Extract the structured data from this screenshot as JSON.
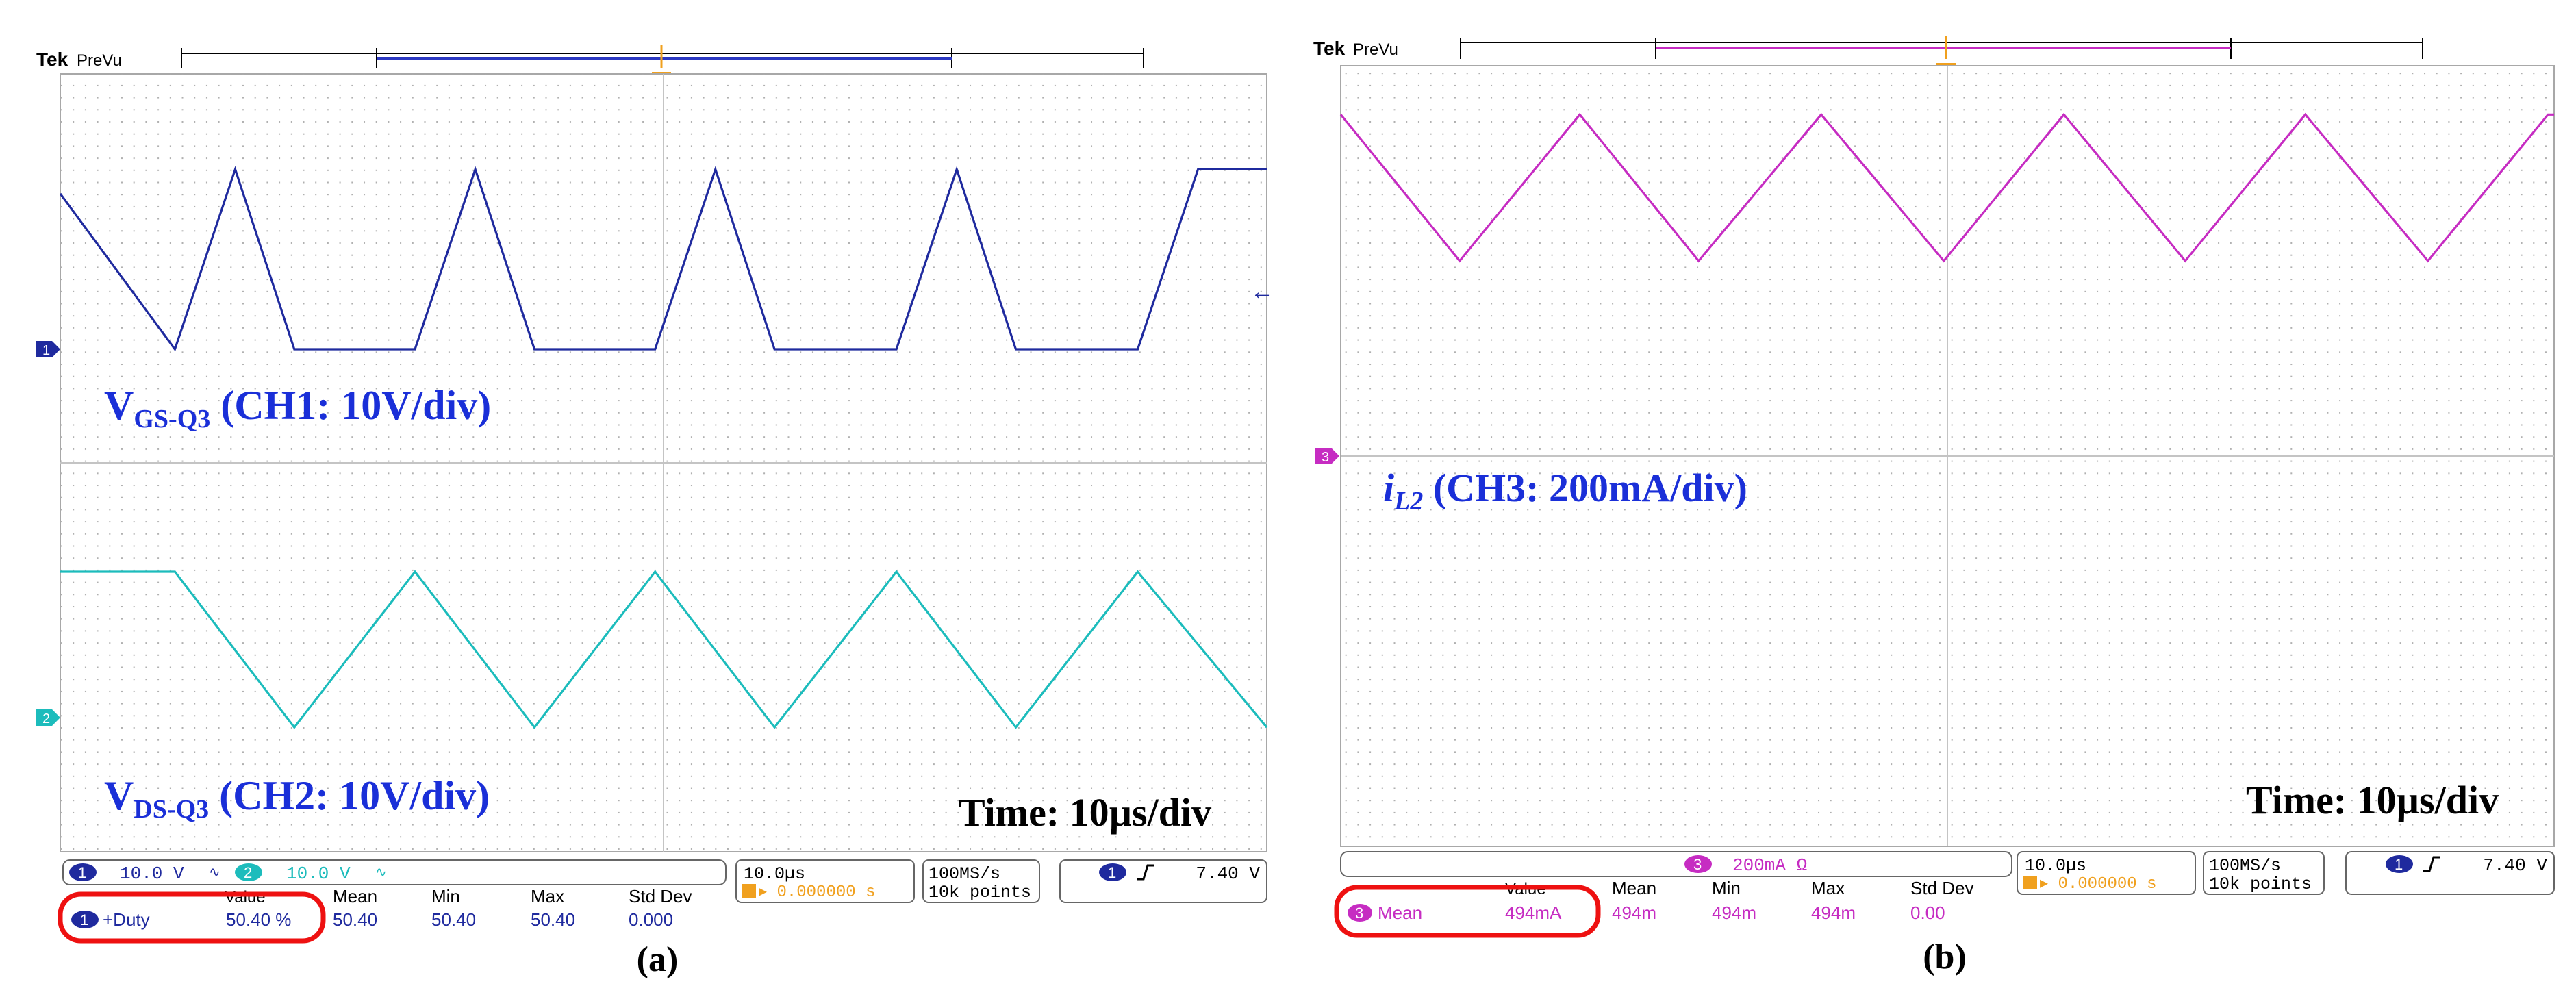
{
  "figures": [
    {
      "brand": "Tek",
      "mode": "PreVu",
      "annotations": [
        {
          "main": "V",
          "sub": "GS-Q3",
          "rest": " (CH1: 10V/div)"
        },
        {
          "main": "V",
          "sub": "DS-Q3",
          "rest": " (CH2: 10V/div)"
        },
        {
          "main": "Time: 10µs/div",
          "sub": "",
          "rest": ""
        }
      ],
      "channel_bar": {
        "ch1_num": "1",
        "ch1_scale": "10.0 V",
        "ch2_num": "2",
        "ch2_scale": "10.0 V"
      },
      "timebase": {
        "scale": "10.0µs",
        "position": "▸ 0.000000 s"
      },
      "acquisition": {
        "rate": "100MS/s",
        "points": "10k points"
      },
      "trigger": {
        "channel": "1",
        "level": "7.40 V"
      },
      "measurement": {
        "headers": [
          "Value",
          "Mean",
          "Min",
          "Max",
          "Std Dev"
        ],
        "channel": "1",
        "name": "+Duty",
        "value": "50.40 %",
        "mean": "50.40",
        "min": "50.40",
        "max": "50.40",
        "std_dev": "0.000"
      },
      "caption": "(a)"
    },
    {
      "brand": "Tek",
      "mode": "PreVu",
      "annotations": [
        {
          "main": "i",
          "sub": "L2",
          "rest": " (CH3: 200mA/div)"
        },
        {
          "main": "Time: 10µs/div",
          "sub": "",
          "rest": ""
        }
      ],
      "channel_bar": {
        "ch3_num": "3",
        "ch3_scale": "200mA Ω"
      },
      "timebase": {
        "scale": "10.0µs",
        "position": "▸ 0.000000 s"
      },
      "acquisition": {
        "rate": "100MS/s",
        "points": "10k points"
      },
      "trigger": {
        "channel": "1",
        "level": "7.40 V"
      },
      "measurement": {
        "headers": [
          "Value",
          "Mean",
          "Min",
          "Max",
          "Std Dev"
        ],
        "channel": "3",
        "name": "Mean",
        "value": "494mA",
        "mean": "494m",
        "min": "494m",
        "max": "494m",
        "std_dev": "0.00"
      },
      "caption": "(b)"
    }
  ],
  "colors": {
    "ch1": "#1f2a9e",
    "ch2": "#1cbcbc",
    "ch3": "#c62cc2",
    "annotation": "#1a2fd8",
    "trigger": "#f0a01e",
    "highlight": "#ee1111"
  },
  "chart_data": [
    {
      "type": "line",
      "x_unit": "µs",
      "x_range": [
        -50,
        50
      ],
      "grid_divisions": {
        "x": 10,
        "y": 8
      },
      "series": [
        {
          "name": "CH1",
          "volts_per_div": 10,
          "x": [
            -50,
            -40.5,
            -35.5,
            -30.6,
            -20.6,
            -15.6,
            -10.7,
            -0.7,
            4.3,
            9.2,
            19.3,
            24.3,
            29.2,
            39.3,
            44.3,
            49.2,
            50
          ],
          "y": [
            16,
            0,
            18.5,
            0,
            0,
            18.5,
            0,
            0,
            18.5,
            0,
            0,
            18.5,
            0,
            0,
            18.5,
            18.5,
            18.5
          ]
        },
        {
          "name": "CH2",
          "volts_per_div": 10,
          "x": [
            -50,
            -40.5,
            -30.6,
            -20.6,
            -10.7,
            -0.7,
            9.2,
            19.3,
            29.2,
            39.3,
            50
          ],
          "y": [
            15,
            15,
            -1,
            15,
            -1,
            15,
            -1,
            15,
            -1,
            15,
            -1
          ]
        },
        {
          "name": "CH3",
          "amps_per_div": 0.2,
          "x": [
            -50,
            -40.2,
            -30.3,
            -20.5,
            -10.4,
            -0.3,
            9.6,
            19.6,
            29.5,
            39.6,
            49.5,
            50
          ],
          "y": [
            0.7,
            0.4,
            0.7,
            0.4,
            0.7,
            0.4,
            0.7,
            0.4,
            0.7,
            0.4,
            0.7,
            0.7
          ]
        }
      ]
    }
  ]
}
